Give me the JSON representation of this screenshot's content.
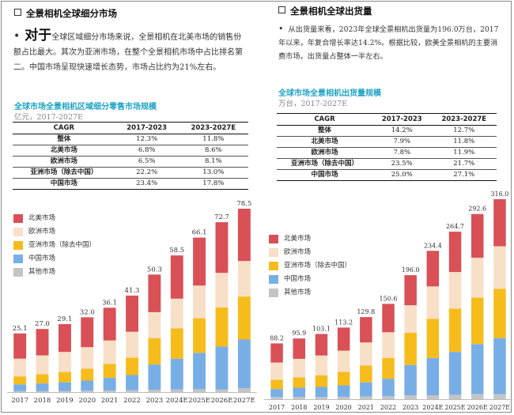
{
  "colors": {
    "na": "#d95057",
    "eu": "#f8dfc7",
    "ap": "#f6bc1c",
    "cn": "#78aee6",
    "other": "#c4c4c4",
    "accent": "#1fa3c4"
  },
  "left": {
    "title": "全景相机全球细分市场",
    "body_big": "对于",
    "body_rest": "全球区域细分市场来说，全景相机在北美市场的销售份额占比最大。其次为亚洲市场，在整个全景相机市场中占比排名第二。中国市场呈现快速增长态势，市场占比约为21%左右。",
    "chart_title": "全球市场全景相机区域细分零售市场规模",
    "chart_subtitle": "亿元，2017-2027E",
    "table": {
      "headers": [
        "CAGR",
        "2017-2023",
        "2023-2027E"
      ],
      "rows": [
        [
          "整体",
          "12.3%",
          "11.8%"
        ],
        [
          "北美市场",
          "6.8%",
          "8.6%"
        ],
        [
          "欧洲市场",
          "6.5%",
          "8.1%"
        ],
        [
          "亚洲市场（除去中国）",
          "22.2%",
          "13.0%"
        ],
        [
          "中国市场",
          "23.4%",
          "17.8%"
        ]
      ]
    },
    "legend": [
      "北美市场",
      "欧洲市场",
      "亚洲市场（除去中国）",
      "中国市场",
      "其他市场"
    ]
  },
  "right": {
    "title": "全景相机全球出货量",
    "body": "从出货量来看，2023年全球全景相机出货量为196.0万台，2017年以来，年复合增长率达14.2%。根据比较，欧美全景相机的主要消费市场，出货量占整体一半左右。",
    "chart_title": "全球市场全景相机出货量规模",
    "chart_subtitle": "万台，2017-2027E",
    "table": {
      "headers": [
        "CAGR",
        "2017-2023",
        "2023-2027E"
      ],
      "rows": [
        [
          "整体",
          "14.2%",
          "12.7%"
        ],
        [
          "北美市场",
          "7.9%",
          "11.8%"
        ],
        [
          "欧洲市场",
          "7.8%",
          "11.9%"
        ],
        [
          "亚洲市场（除去中国）",
          "23.5%",
          "21.7%"
        ],
        [
          "中国市场",
          "25.0%",
          "27.1%"
        ]
      ]
    },
    "legend": [
      "北美市场",
      "欧洲市场",
      "亚洲市场（除去中国）",
      "中国市场",
      "其他市场"
    ]
  },
  "chart_data": [
    {
      "type": "bar",
      "stacked": true,
      "title": "全球市场全景相机区域细分零售市场规模",
      "subtitle": "亿元，2017-2027E",
      "categories": [
        "2017",
        "2018",
        "2019",
        "2020",
        "2021",
        "2022",
        "2023",
        "2024E",
        "2025E",
        "2026E",
        "2027E"
      ],
      "totals": [
        25.1,
        27.0,
        29.1,
        32.0,
        36.1,
        41.3,
        50.3,
        58.5,
        66.1,
        72.7,
        78.5
      ],
      "series": [
        {
          "name": "北美市场",
          "color": "#d95057",
          "values": [
            10.8,
            11.3,
            11.9,
            12.8,
            14.0,
            15.5,
            16.1,
            18.5,
            20.5,
            21.7,
            22.4
          ]
        },
        {
          "name": "欧洲市场",
          "color": "#f8dfc7",
          "values": [
            7.6,
            8.1,
            8.6,
            9.2,
            10.0,
            11.0,
            11.1,
            12.7,
            14.0,
            14.8,
            15.2
          ]
        },
        {
          "name": "亚洲市场（除去中国）",
          "color": "#f6bc1c",
          "values": [
            3.4,
            3.9,
            4.4,
            5.1,
            6.0,
            7.5,
            11.3,
            13.0,
            14.8,
            16.7,
            18.4
          ]
        },
        {
          "name": "中国市场",
          "color": "#78aee6",
          "values": [
            2.9,
            3.2,
            3.7,
            4.3,
            5.4,
            6.5,
            10.8,
            13.2,
            15.6,
            18.4,
            20.8
          ]
        },
        {
          "name": "其他市场",
          "color": "#c4c4c4",
          "values": [
            0.4,
            0.5,
            0.5,
            0.6,
            0.7,
            0.8,
            1.0,
            1.1,
            1.2,
            1.1,
            1.7
          ]
        }
      ]
    },
    {
      "type": "bar",
      "stacked": true,
      "title": "全球市场全景相机出货量规模",
      "subtitle": "万台，2017-2027E",
      "categories": [
        "2017",
        "2018",
        "2019",
        "2020",
        "2021",
        "2022",
        "2023",
        "2024E",
        "2025E",
        "2026E",
        "2027E"
      ],
      "totals": [
        88.2,
        95.9,
        103.1,
        113.2,
        129.8,
        150.6,
        196.0,
        234.4,
        264.7,
        292.6,
        316.0
      ],
      "series": [
        {
          "name": "北美市场",
          "color": "#d95057",
          "values": [
            30.2,
            32.1,
            34.0,
            36.5,
            40.1,
            44.8,
            47.6,
            56.2,
            63.7,
            69.2,
            74.3
          ]
        },
        {
          "name": "欧洲市场",
          "color": "#f8dfc7",
          "values": [
            27.4,
            29.3,
            31.2,
            33.4,
            36.6,
            40.6,
            43.3,
            51.0,
            57.8,
            62.8,
            67.2
          ]
        },
        {
          "name": "亚洲市场（除去中国）",
          "color": "#f6bc1c",
          "values": [
            14.5,
            16.4,
            18.5,
            21.5,
            26.5,
            33.0,
            51.0,
            62.0,
            68.5,
            73.6,
            77.9
          ]
        },
        {
          "name": "中国市场",
          "color": "#78aee6",
          "values": [
            12.6,
            14.4,
            15.7,
            18.0,
            22.4,
            27.6,
            48.0,
            58.9,
            67.7,
            79.1,
            88.4
          ]
        },
        {
          "name": "其他市场",
          "color": "#c4c4c4",
          "values": [
            3.5,
            3.7,
            3.7,
            3.8,
            4.2,
            4.6,
            6.1,
            6.3,
            7.0,
            7.9,
            8.2
          ]
        }
      ]
    }
  ]
}
